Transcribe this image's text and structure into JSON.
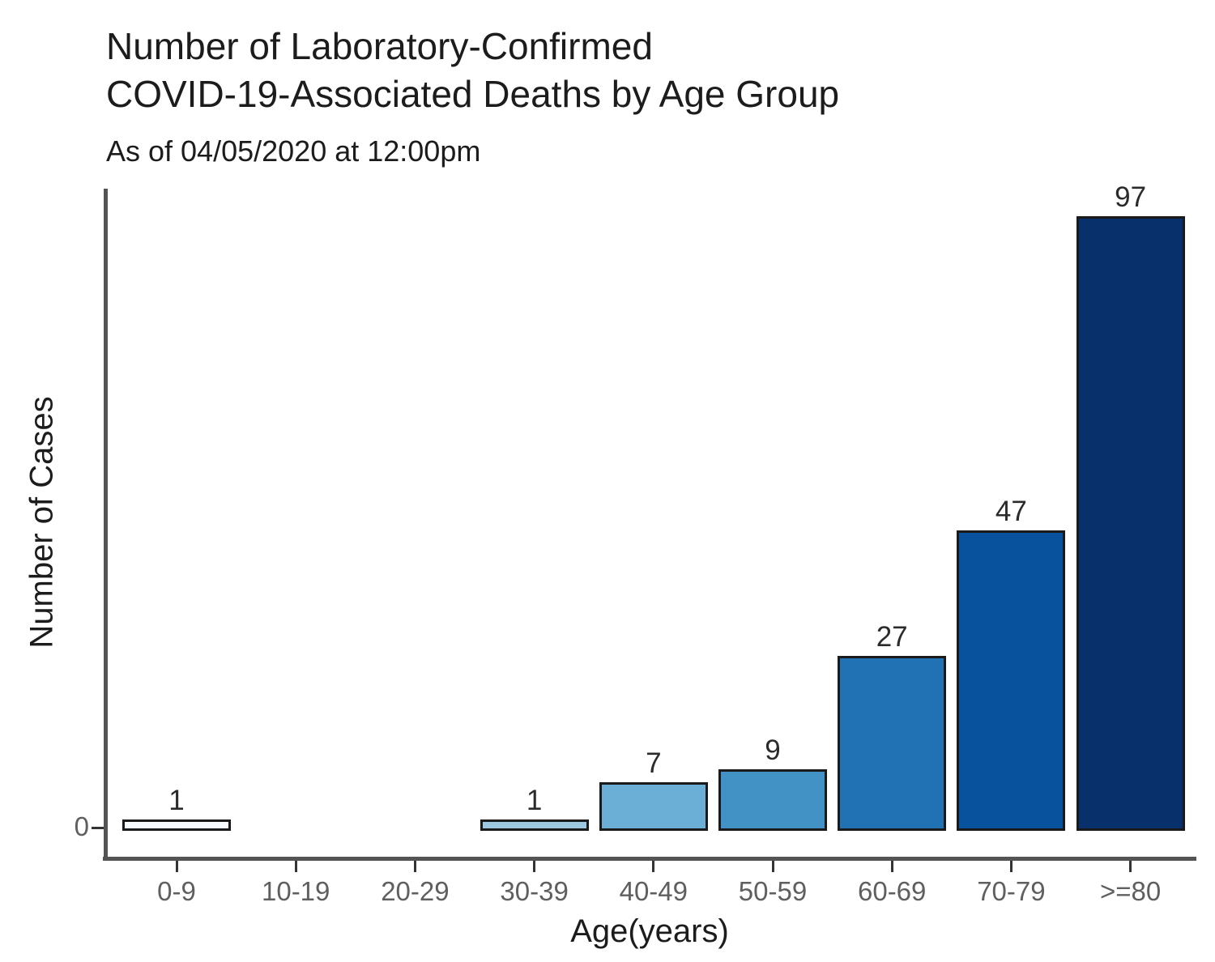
{
  "header": {
    "title_line1": "Number of Laboratory-Confirmed",
    "title_line2": "COVID-19-Associated Deaths by Age Group",
    "subtitle": "As of 04/05/2020 at 12:00pm"
  },
  "chart_data": {
    "type": "bar",
    "title": "Number of Laboratory-Confirmed COVID-19-Associated Deaths by Age Group",
    "subtitle": "As of 04/05/2020 at 12:00pm",
    "xlabel": "Age(years)",
    "ylabel": "Number of Cases",
    "categories": [
      "0-9",
      "10-19",
      "20-29",
      "30-39",
      "40-49",
      "50-59",
      "60-69",
      "70-79",
      ">=80"
    ],
    "values": [
      1,
      0,
      0,
      1,
      7,
      9,
      27,
      47,
      97
    ],
    "value_labels": [
      "1",
      "",
      "",
      "1",
      "7",
      "9",
      "27",
      "47",
      "97"
    ],
    "bar_colors": [
      "#f7fbff",
      "#deebf7",
      "#c6dbef",
      "#9ecae1",
      "#6baed6",
      "#4292c6",
      "#2171b5",
      "#08519c",
      "#08306b"
    ],
    "ylim": [
      0,
      102
    ],
    "y_ticks": [
      "0"
    ],
    "grid": false,
    "legend": "none"
  },
  "colors": {
    "bar_border": "#1a1a1a",
    "axis_line": "#545454",
    "tick_mark": "#333333",
    "tick_label": "#5f5f5f",
    "text": "#1c1c1c",
    "value_label": "#2b2b2b",
    "background": "#ffffff"
  }
}
